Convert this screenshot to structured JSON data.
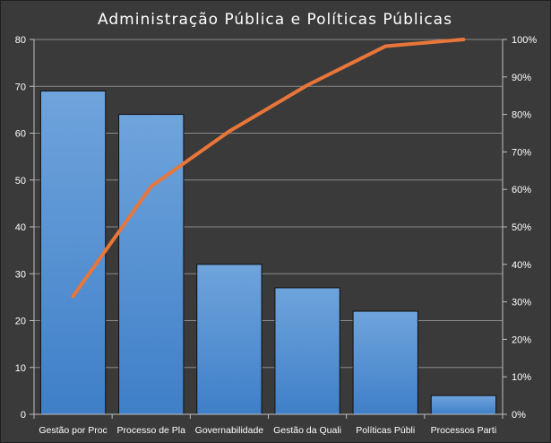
{
  "chart_data": {
    "type": "bar",
    "title": "Administração  Pública  e  Políticas  Públicas",
    "categories": [
      "Gestão por Proc",
      "Processo de Pla",
      "Governabilidade",
      "Gestão da Quali",
      "Políticas Públi",
      "Processos Parti"
    ],
    "series": [
      {
        "type": "bar",
        "values": [
          69,
          64,
          32,
          27,
          22,
          4
        ],
        "axis": "left"
      },
      {
        "type": "line",
        "values": [
          31.5,
          60.8,
          75.5,
          87.8,
          98.2,
          100
        ],
        "axis": "right"
      }
    ],
    "ylim_left": [
      0,
      80
    ],
    "yticks_left": [
      "0",
      "10",
      "20",
      "30",
      "40",
      "50",
      "60",
      "70",
      "80"
    ],
    "ylim_right": [
      0,
      100
    ],
    "yticks_right": [
      "0%",
      "10%",
      "20%",
      "30%",
      "40%",
      "50%",
      "60%",
      "70%",
      "80%",
      "90%",
      "100%"
    ],
    "grid": true,
    "legend": "none",
    "colors": {
      "bar_top": "#6fa4dc",
      "bar_bottom": "#3f7fc8",
      "line": "#e8763a",
      "grid": "#8a8a8a",
      "background": "#3a3a3a"
    }
  }
}
